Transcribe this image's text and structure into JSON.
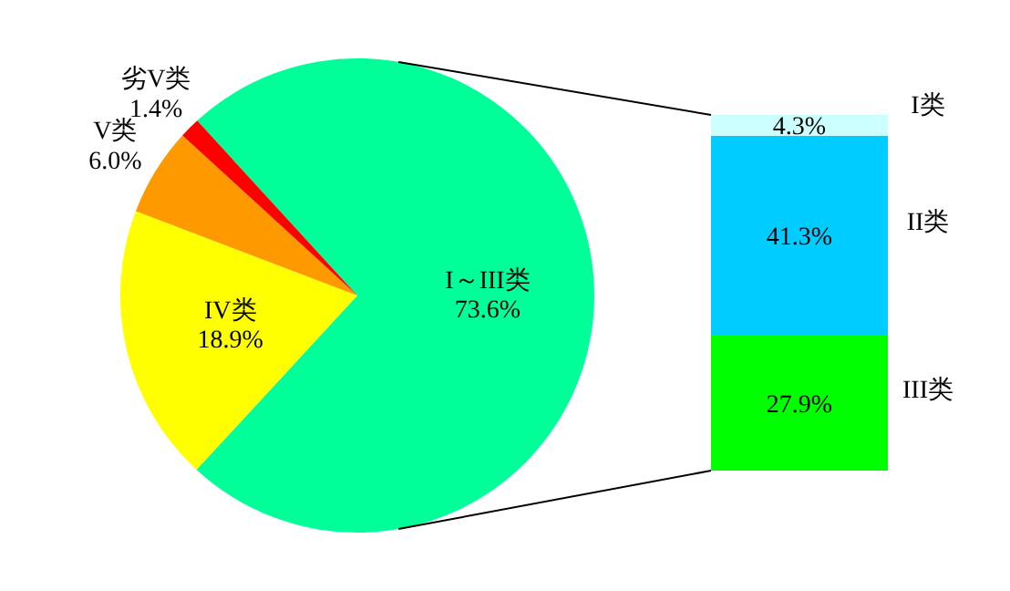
{
  "chart_data": [
    {
      "type": "pie",
      "categories": [
        "I～III类",
        "IV类",
        "V类",
        "劣V类"
      ],
      "values": [
        73.6,
        18.9,
        6.0,
        1.4
      ],
      "colors": [
        "#00ff99",
        "#ffff00",
        "#ff9900",
        "#ff0000"
      ],
      "value_labels": [
        "73.6%",
        "18.9%",
        "6.0%",
        "1.4%"
      ]
    },
    {
      "type": "bar",
      "stacked": true,
      "categories": [
        null
      ],
      "series": [
        {
          "name": "III类",
          "color": "#00ff00",
          "values": [
            27.9
          ],
          "value_labels": [
            "27.9%"
          ]
        },
        {
          "name": "II类",
          "color": "#00ccff",
          "values": [
            41.3
          ],
          "value_labels": [
            "41.3%"
          ]
        },
        {
          "name": "I类",
          "color": "#ccffff",
          "values": [
            4.3
          ],
          "value_labels": [
            "4.3%"
          ]
        }
      ]
    }
  ]
}
